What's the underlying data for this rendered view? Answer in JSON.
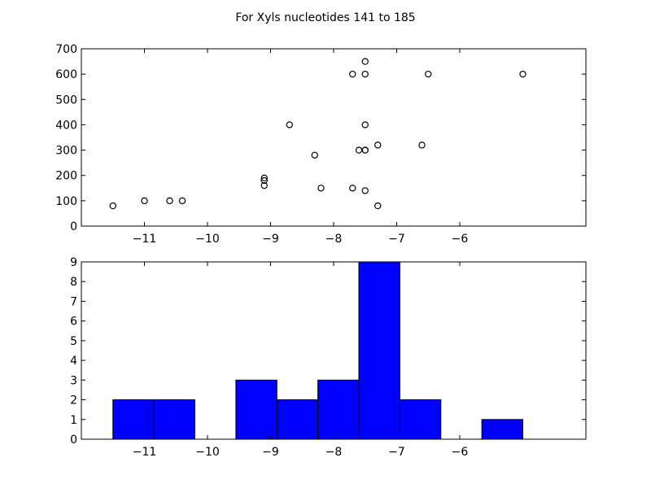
{
  "figure": {
    "title": "For Xyls nucleotides 141 to 185"
  },
  "chart_data": [
    {
      "type": "scatter",
      "marker": "open-circle",
      "marker_color": "#000000",
      "xlim": [
        -12.0,
        -4.0
      ],
      "ylim": [
        0,
        700
      ],
      "xticks": [
        -11,
        -10,
        -9,
        -8,
        -7,
        -6
      ],
      "yticks": [
        0,
        100,
        200,
        300,
        400,
        500,
        600,
        700
      ],
      "grid": false,
      "points": [
        {
          "x": -11.5,
          "y": 80
        },
        {
          "x": -11.0,
          "y": 100
        },
        {
          "x": -10.6,
          "y": 100
        },
        {
          "x": -10.4,
          "y": 100
        },
        {
          "x": -9.1,
          "y": 190
        },
        {
          "x": -9.1,
          "y": 180
        },
        {
          "x": -9.1,
          "y": 160
        },
        {
          "x": -8.7,
          "y": 400
        },
        {
          "x": -8.3,
          "y": 280
        },
        {
          "x": -8.2,
          "y": 150
        },
        {
          "x": -7.7,
          "y": 600
        },
        {
          "x": -7.7,
          "y": 150
        },
        {
          "x": -7.6,
          "y": 300
        },
        {
          "x": -7.5,
          "y": 650
        },
        {
          "x": -7.5,
          "y": 600
        },
        {
          "x": -7.5,
          "y": 400
        },
        {
          "x": -7.5,
          "y": 300
        },
        {
          "x": -7.5,
          "y": 300
        },
        {
          "x": -7.5,
          "y": 140
        },
        {
          "x": -7.3,
          "y": 320
        },
        {
          "x": -7.3,
          "y": 80
        },
        {
          "x": -6.6,
          "y": 320
        },
        {
          "x": -6.5,
          "y": 600
        },
        {
          "x": -5.0,
          "y": 600
        }
      ]
    },
    {
      "type": "bar",
      "subtype": "histogram",
      "bar_color": "#0000ff",
      "edge_color": "#000000",
      "xlim": [
        -12.0,
        -4.0
      ],
      "ylim": [
        0,
        9
      ],
      "xticks": [
        -11,
        -10,
        -9,
        -8,
        -7,
        -6
      ],
      "yticks": [
        0,
        1,
        2,
        3,
        4,
        5,
        6,
        7,
        8,
        9
      ],
      "grid": false,
      "bins": [
        {
          "x0": -11.5,
          "x1": -10.85,
          "count": 2
        },
        {
          "x0": -10.85,
          "x1": -10.2,
          "count": 2
        },
        {
          "x0": -10.2,
          "x1": -9.55,
          "count": 0
        },
        {
          "x0": -9.55,
          "x1": -8.9,
          "count": 3
        },
        {
          "x0": -8.9,
          "x1": -8.25,
          "count": 2
        },
        {
          "x0": -8.25,
          "x1": -7.6,
          "count": 3
        },
        {
          "x0": -7.6,
          "x1": -6.95,
          "count": 9
        },
        {
          "x0": -6.95,
          "x1": -6.3,
          "count": 2
        },
        {
          "x0": -6.3,
          "x1": -5.65,
          "count": 0
        },
        {
          "x0": -5.65,
          "x1": -5.0,
          "count": 1
        }
      ]
    }
  ]
}
